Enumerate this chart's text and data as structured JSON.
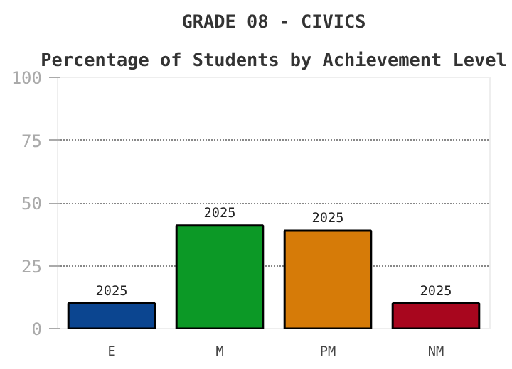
{
  "chart_data": {
    "type": "bar",
    "title": "GRADE 08 - CIVICS",
    "subtitle": "Percentage of Students by Achievement Level",
    "categories": [
      "E",
      "M",
      "PM",
      "NM"
    ],
    "series": [
      {
        "name": "2025",
        "values": [
          10,
          41,
          39,
          10
        ]
      }
    ],
    "colors": [
      "#0b4590",
      "#0c9926",
      "#d67b08",
      "#a8061e"
    ],
    "ylim": [
      0,
      100
    ],
    "yticks": [
      0,
      25,
      50,
      75,
      100
    ],
    "grid": "y"
  }
}
